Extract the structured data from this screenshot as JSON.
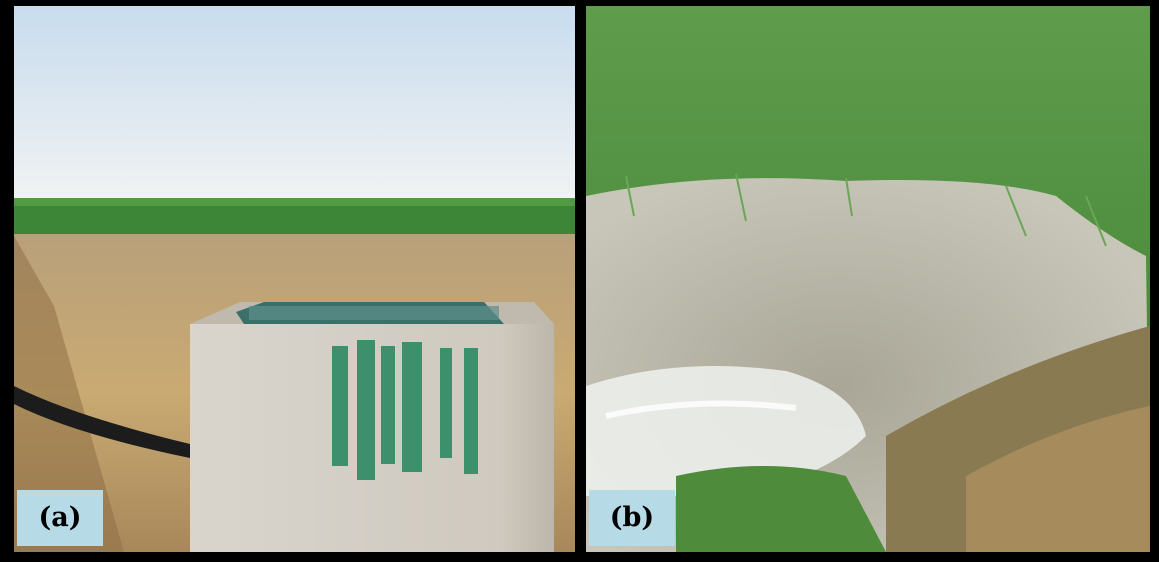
{
  "figure": {
    "panels": [
      {
        "id": "a",
        "label": "(a)",
        "scene": "concrete-irrigation-box-in-dry-field"
      },
      {
        "id": "b",
        "label": "(b)",
        "scene": "water-inflow-into-rice-paddy"
      }
    ]
  },
  "colors": {
    "frame": "#000000",
    "label_background": "#b6dae6",
    "sky": "#dfe9f1",
    "crop_green": "#3f8a3a",
    "stubble": "#c2a576",
    "concrete": "#d7d2c9",
    "paint_green": "#2e8a63",
    "water": "#b9b7a6",
    "foam": "#f2f5f3"
  }
}
